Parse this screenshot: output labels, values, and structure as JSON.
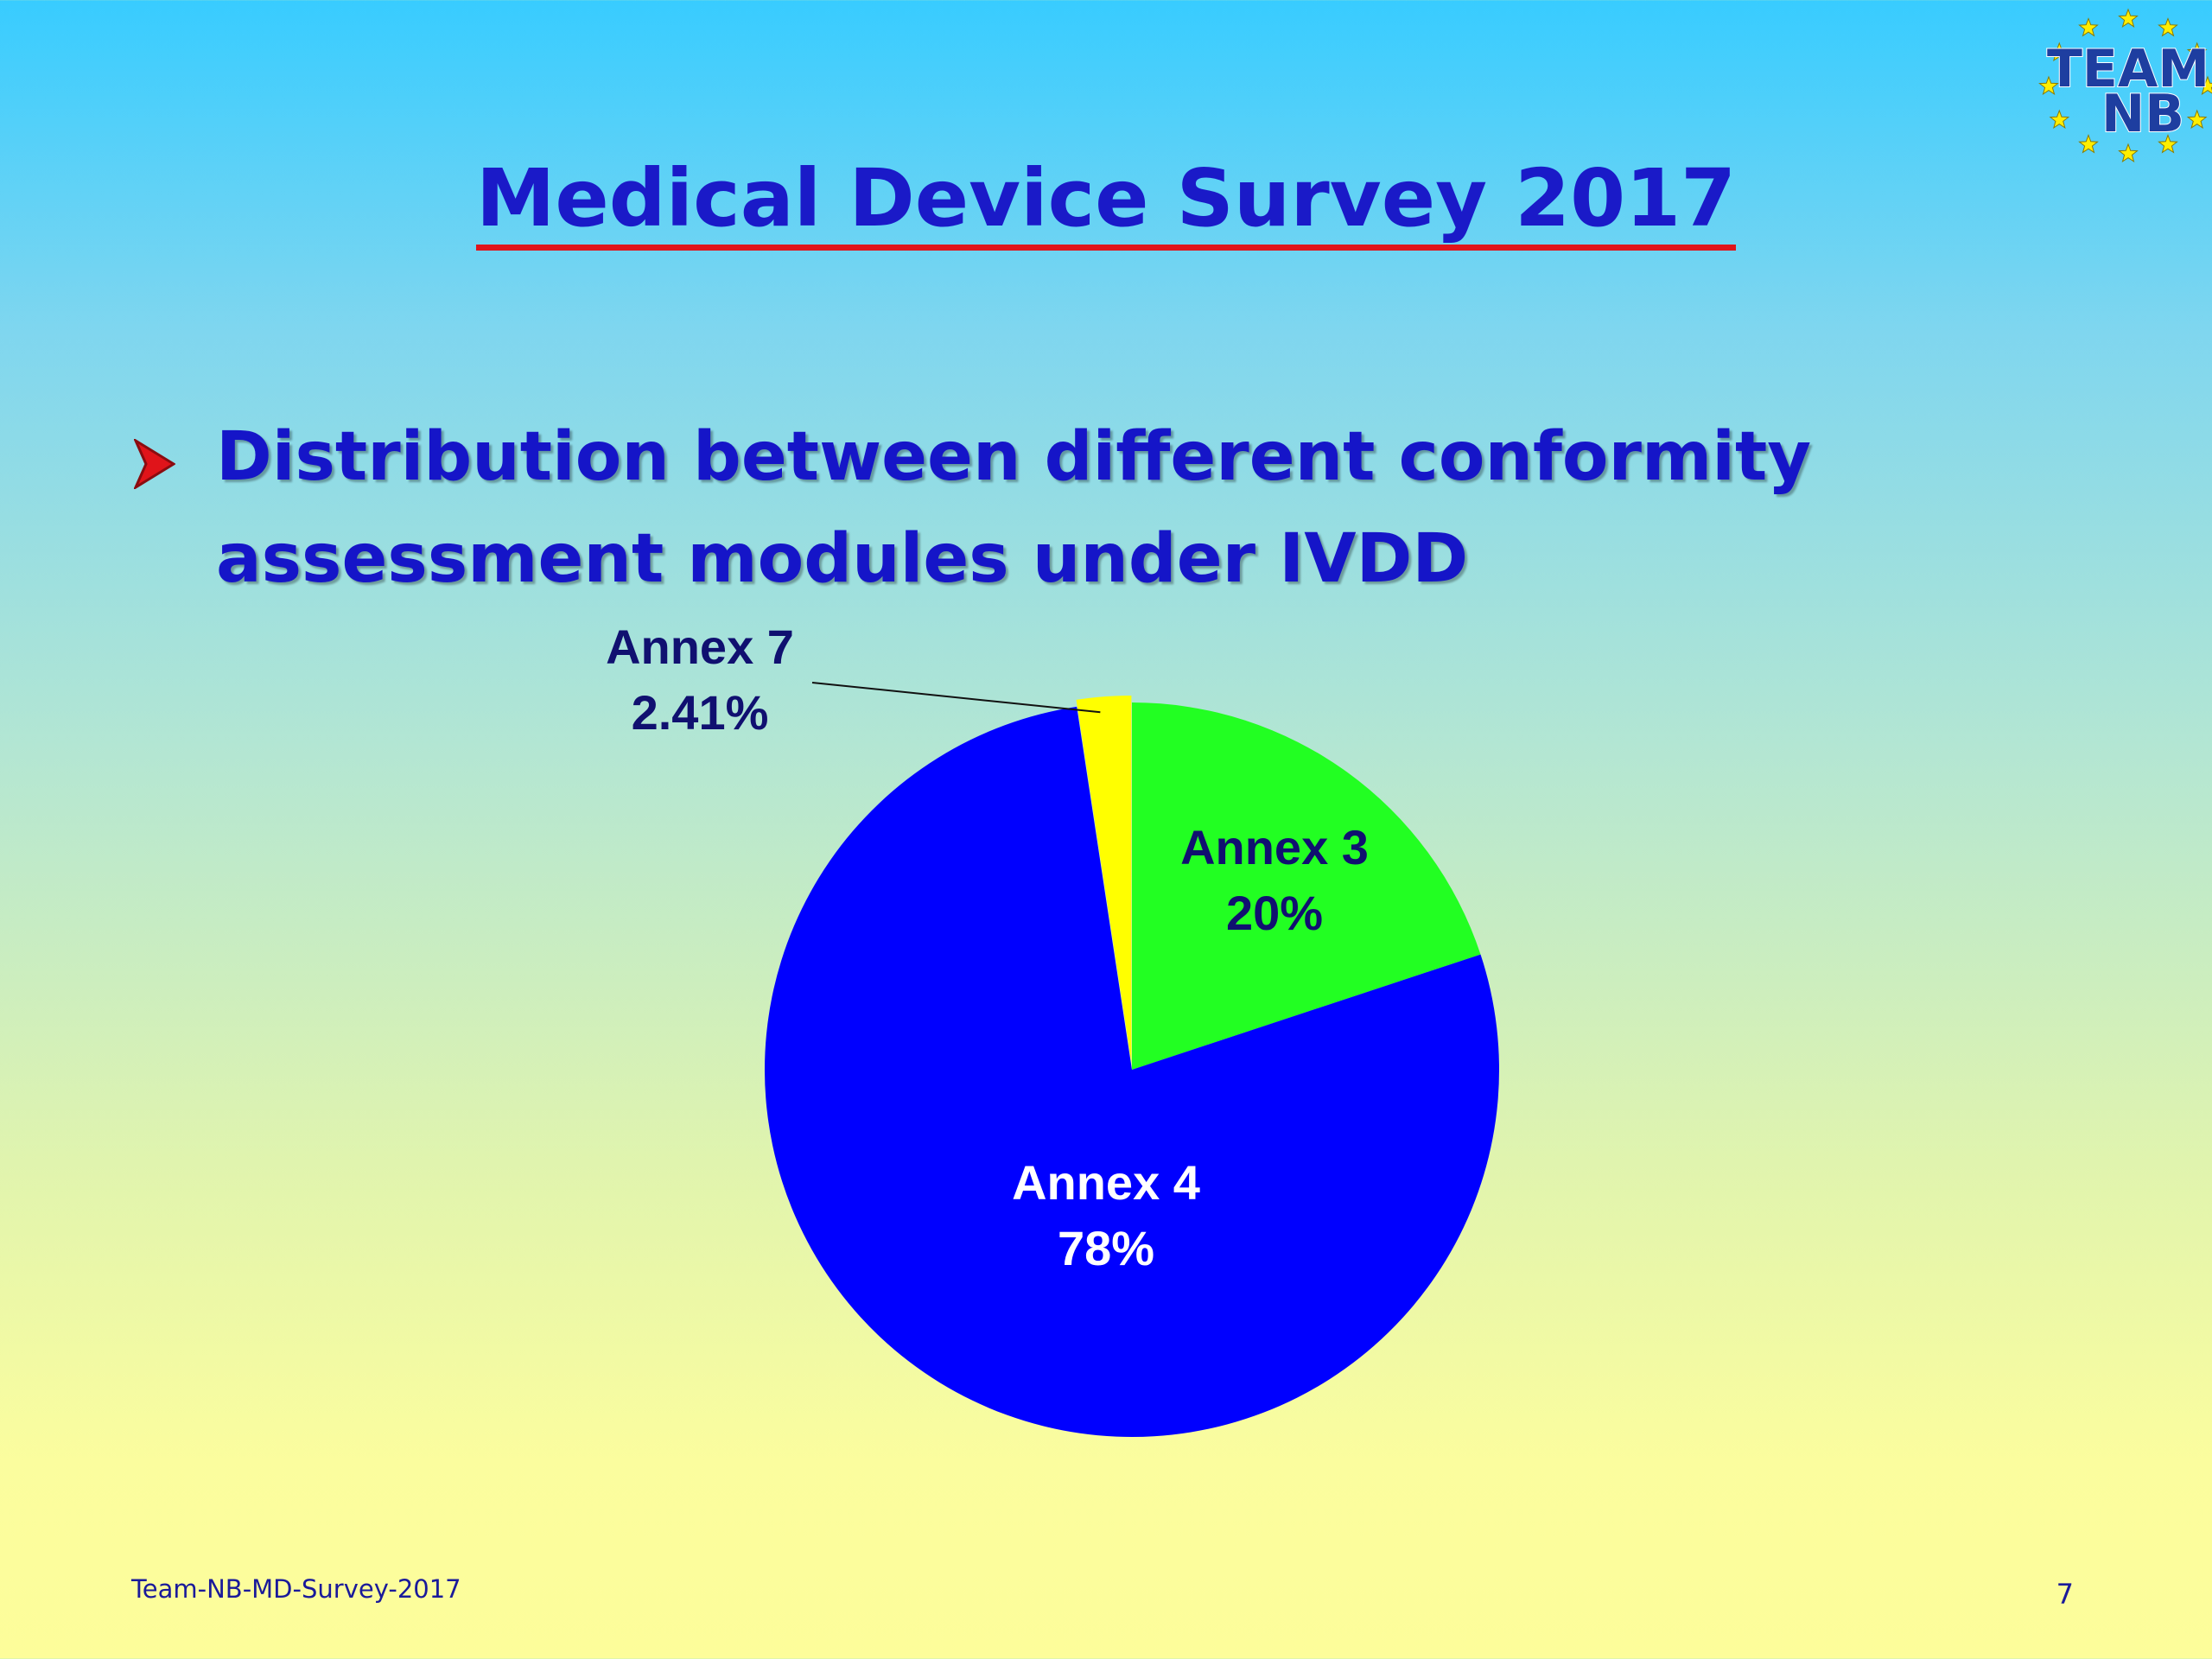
{
  "slide": {
    "title": "Medical Device Survey 2017",
    "bullet": "Distribution between different conformity assessment modules under IVDD",
    "footer": "Team-NB-MD-Survey-2017",
    "page_number": "7"
  },
  "logo": {
    "line1": "TEAM",
    "line2": "NB",
    "icon": "star-ring-icon"
  },
  "colors": {
    "title": "#1a1ac8",
    "underline": "#e0141a",
    "annex3": "#22ff22",
    "annex4": "#0000ff",
    "annex7": "#ffff00"
  },
  "chart_data": {
    "type": "pie",
    "title": "",
    "slices": [
      {
        "name": "Annex 3",
        "value": 20,
        "label": "20%",
        "color": "#22ff22"
      },
      {
        "name": "Annex 4",
        "value": 78,
        "label": "78%",
        "color": "#0000ff"
      },
      {
        "name": "Annex 7",
        "value": 2.41,
        "label": "2.41%",
        "color": "#ffff00"
      }
    ]
  }
}
